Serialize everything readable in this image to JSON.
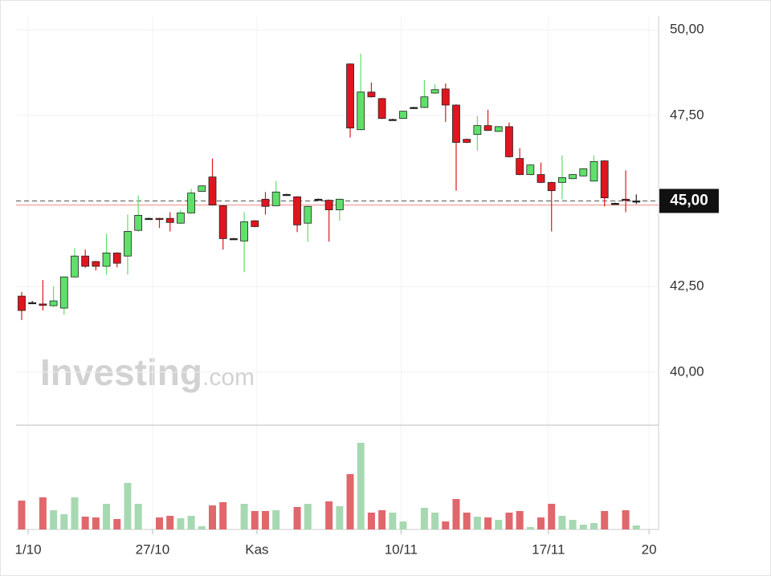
{
  "chart_data": {
    "type": "candlestick",
    "watermark": [
      "Investing",
      ".com"
    ],
    "x": [
      0,
      1,
      2,
      3,
      4,
      5,
      6,
      7,
      8,
      9,
      10,
      11,
      12,
      13,
      14,
      15,
      16,
      17,
      18,
      19,
      20,
      21,
      22,
      23,
      24,
      25,
      26,
      27,
      28,
      29,
      30,
      31,
      32,
      33,
      34,
      35,
      36,
      37,
      38,
      39,
      40,
      41,
      42,
      43,
      44,
      45,
      46,
      47,
      48,
      49,
      50,
      51,
      52,
      53,
      54,
      55,
      56,
      57,
      58
    ],
    "open": [
      42.22,
      42.03,
      41.99,
      41.94,
      41.87,
      42.78,
      43.39,
      43.23,
      43.09,
      43.48,
      43.39,
      44.14,
      44.49,
      44.49,
      44.49,
      44.35,
      44.65,
      45.28,
      45.7,
      44.86,
      43.9,
      43.83,
      44.42,
      45.05,
      44.86,
      45.19,
      45.12,
      44.35,
      45.05,
      45.02,
      44.74,
      49.0,
      47.08,
      48.18,
      47.99,
      47.38,
      47.41,
      47.73,
      47.73,
      48.15,
      48.27,
      47.8,
      46.8,
      46.94,
      47.2,
      47.03,
      47.17,
      46.24,
      45.77,
      45.77,
      45.54,
      45.54,
      45.65,
      45.73,
      45.58,
      46.17,
      44.93,
      45.05,
      45.0
    ],
    "high": [
      42.34,
      42.08,
      42.69,
      42.5,
      42.8,
      43.62,
      43.58,
      43.25,
      44.04,
      43.5,
      44.6,
      45.16,
      44.51,
      44.51,
      44.67,
      44.74,
      45.35,
      45.46,
      46.24,
      44.88,
      43.92,
      44.67,
      44.44,
      45.26,
      45.58,
      45.21,
      45.14,
      44.86,
      45.07,
      45.04,
      45.07,
      49.02,
      49.3,
      48.46,
      48.01,
      47.4,
      47.64,
      47.75,
      48.53,
      48.41,
      48.43,
      47.82,
      46.82,
      47.48,
      47.66,
      47.19,
      47.29,
      46.54,
      46.07,
      46.12,
      45.56,
      46.33,
      45.79,
      45.96,
      46.33,
      46.19,
      44.95,
      45.89,
      45.19
    ],
    "low": [
      41.52,
      41.99,
      41.8,
      41.9,
      41.68,
      42.75,
      43.05,
      42.97,
      42.85,
      43.06,
      42.85,
      44.1,
      44.47,
      44.21,
      44.11,
      44.33,
      44.63,
      45.26,
      44.86,
      43.58,
      43.88,
      42.92,
      44.23,
      44.6,
      44.84,
      45.17,
      44.09,
      43.81,
      45.03,
      43.81,
      44.42,
      46.85,
      47.06,
      48.02,
      47.39,
      47.36,
      47.39,
      47.71,
      47.71,
      48.13,
      47.31,
      45.3,
      46.69,
      46.47,
      47.04,
      47.01,
      46.27,
      45.75,
      45.75,
      45.52,
      44.11,
      45.05,
      45.63,
      45.71,
      45.56,
      44.84,
      44.91,
      44.67,
      44.91
    ],
    "close": [
      41.8,
      42.03,
      41.95,
      42.08,
      42.78,
      43.39,
      43.09,
      43.09,
      43.48,
      43.18,
      44.11,
      44.58,
      44.49,
      44.46,
      44.37,
      44.65,
      45.23,
      45.44,
      44.88,
      43.9,
      43.9,
      44.39,
      44.25,
      44.84,
      45.26,
      45.19,
      44.3,
      44.84,
      45.05,
      44.74,
      45.05,
      47.13,
      48.18,
      48.04,
      47.41,
      47.38,
      47.62,
      47.73,
      48.04,
      48.25,
      47.8,
      46.71,
      46.71,
      47.2,
      47.06,
      47.17,
      46.29,
      45.77,
      46.05,
      45.54,
      45.3,
      45.68,
      45.77,
      45.94,
      46.15,
      45.09,
      44.93,
      45.02,
      45.0
    ],
    "volume": [
      36,
      null,
      40,
      24,
      19,
      40,
      16,
      15,
      32,
      13,
      58,
      32,
      null,
      15,
      17,
      14,
      17,
      4,
      30,
      34,
      null,
      32,
      23,
      23,
      24,
      null,
      28,
      32,
      null,
      35,
      29,
      69,
      108,
      21,
      24,
      21,
      10,
      null,
      27,
      21,
      10,
      38,
      21,
      16,
      15,
      12,
      21,
      23,
      3,
      15,
      32,
      17,
      12,
      6,
      8,
      23,
      null,
      24,
      5
    ],
    "up_color": "#5ee06a",
    "down_color": "#e0161e",
    "flat_color": "#222222",
    "volume_up_color": "#a6d9b2",
    "volume_down_color": "#e0676c",
    "xlim": [
      -0.53,
      60.1
    ],
    "xticks": [
      {
        "value": 0.61,
        "label": "1/10"
      },
      {
        "value": 12.35,
        "label": "27/10"
      },
      {
        "value": 22.2,
        "label": "Kas"
      },
      {
        "value": 35.8,
        "label": "10/11"
      },
      {
        "value": 49.7,
        "label": "17/11"
      },
      {
        "value": 59.2,
        "label": "20"
      }
    ],
    "ylim": [
      38.45,
      50.4
    ],
    "yticks": [
      {
        "value": 40,
        "label": "40,00"
      },
      {
        "value": 42.5,
        "label": "42,50"
      },
      {
        "value": 45,
        "label": "45,00"
      },
      {
        "value": 47.5,
        "label": "47,50"
      },
      {
        "value": 50,
        "label": "50,00"
      }
    ],
    "volume_lim": [
      0,
      128
    ],
    "last_price": {
      "value": 45.0,
      "label": "45,00"
    },
    "reference_line": 44.88,
    "grid": true
  }
}
